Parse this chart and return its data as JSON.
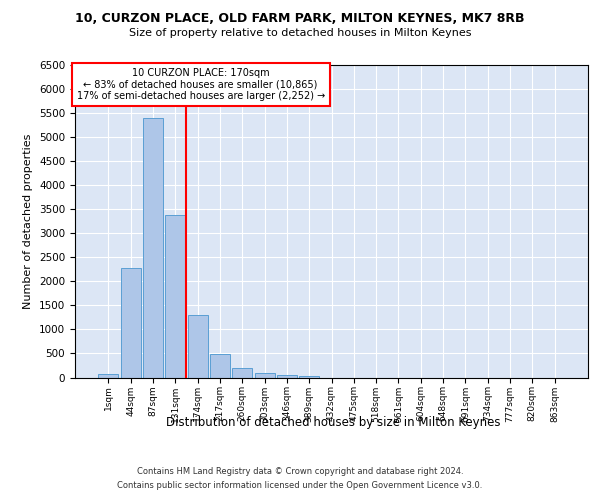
{
  "title_line1": "10, CURZON PLACE, OLD FARM PARK, MILTON KEYNES, MK7 8RB",
  "title_line2": "Size of property relative to detached houses in Milton Keynes",
  "xlabel": "Distribution of detached houses by size in Milton Keynes",
  "ylabel": "Number of detached properties",
  "categories": [
    "1sqm",
    "44sqm",
    "87sqm",
    "131sqm",
    "174sqm",
    "217sqm",
    "260sqm",
    "303sqm",
    "346sqm",
    "389sqm",
    "432sqm",
    "475sqm",
    "518sqm",
    "561sqm",
    "604sqm",
    "648sqm",
    "691sqm",
    "734sqm",
    "777sqm",
    "820sqm",
    "863sqm"
  ],
  "values": [
    75,
    2280,
    5400,
    3380,
    1310,
    480,
    190,
    90,
    55,
    40,
    0,
    0,
    0,
    0,
    0,
    0,
    0,
    0,
    0,
    0,
    0
  ],
  "bar_color": "#aec6e8",
  "bar_edge_color": "#5a9fd4",
  "vline_x": 3.5,
  "vline_color": "red",
  "annotation_title": "10 CURZON PLACE: 170sqm",
  "annotation_line1": "← 83% of detached houses are smaller (10,865)",
  "annotation_line2": "17% of semi-detached houses are larger (2,252) →",
  "annotation_box_color": "red",
  "ylim": [
    0,
    6500
  ],
  "yticks": [
    0,
    500,
    1000,
    1500,
    2000,
    2500,
    3000,
    3500,
    4000,
    4500,
    5000,
    5500,
    6000,
    6500
  ],
  "background_color": "#dce6f5",
  "footer_line1": "Contains HM Land Registry data © Crown copyright and database right 2024.",
  "footer_line2": "Contains public sector information licensed under the Open Government Licence v3.0."
}
